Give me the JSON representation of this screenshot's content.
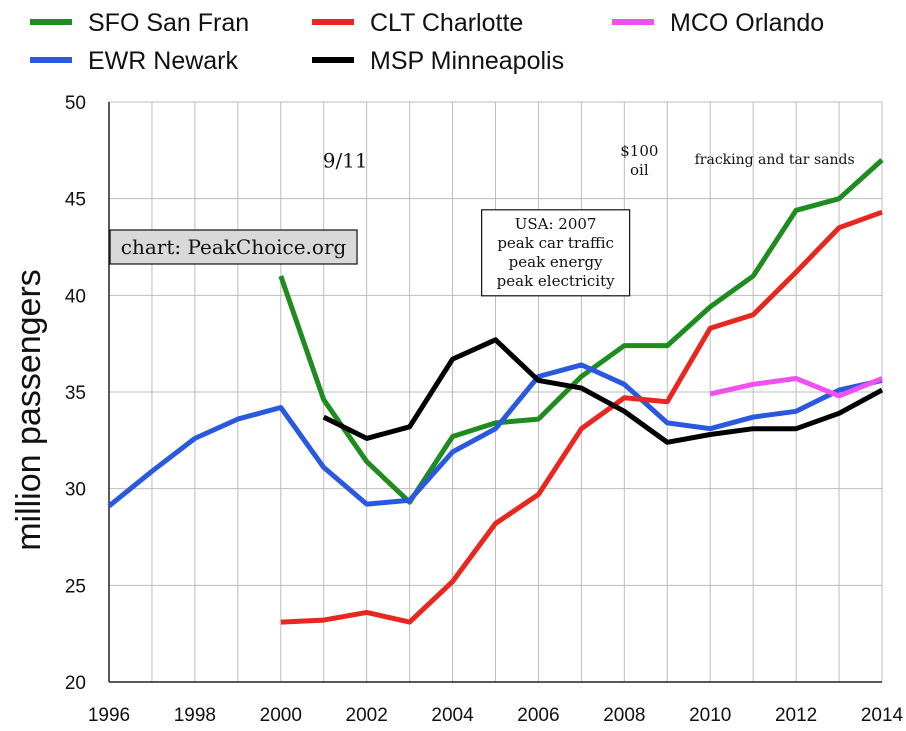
{
  "chart_data": {
    "type": "line",
    "title": "",
    "xlabel": "",
    "ylabel": "million passengers",
    "xlim": [
      1996,
      2014
    ],
    "ylim": [
      20,
      50
    ],
    "grid": true,
    "legend_placement": "top",
    "x_ticks": [
      "1996",
      "1998",
      "2000",
      "2002",
      "2004",
      "2006",
      "2008",
      "2010",
      "2012",
      "2014"
    ],
    "y_ticks": [
      "20",
      "25",
      "30",
      "35",
      "40",
      "45",
      "50"
    ],
    "series": [
      {
        "name": "SFO San Fran",
        "color": "#1e8c1e",
        "x": [
          2000,
          2001,
          2002,
          2003,
          2004,
          2005,
          2006,
          2007,
          2008,
          2009,
          2010,
          2011,
          2012,
          2013,
          2014
        ],
        "y": [
          41.0,
          34.6,
          31.4,
          29.3,
          32.7,
          33.4,
          33.6,
          35.8,
          37.4,
          37.4,
          39.4,
          41.0,
          44.4,
          45.0,
          47.0
        ]
      },
      {
        "name": "EWR Newark",
        "color": "#2a59e0",
        "x": [
          1996,
          1997,
          1998,
          1999,
          2000,
          2001,
          2002,
          2003,
          2004,
          2005,
          2006,
          2007,
          2008,
          2009,
          2010,
          2011,
          2012,
          2013,
          2014
        ],
        "y": [
          29.1,
          30.9,
          32.6,
          33.6,
          34.2,
          31.1,
          29.2,
          29.4,
          31.9,
          33.1,
          35.8,
          36.4,
          35.4,
          33.4,
          33.1,
          33.7,
          34.0,
          35.1,
          35.6
        ]
      },
      {
        "name": "CLT Charlotte",
        "color": "#e82820",
        "x": [
          2000,
          2001,
          2002,
          2003,
          2004,
          2005,
          2006,
          2007,
          2008,
          2009,
          2010,
          2011,
          2012,
          2013,
          2014
        ],
        "y": [
          23.1,
          23.2,
          23.6,
          23.1,
          25.2,
          28.2,
          29.7,
          33.1,
          34.7,
          34.5,
          38.3,
          39.0,
          41.2,
          43.5,
          44.3
        ]
      },
      {
        "name": "MSP Minneapolis",
        "color": "#000000",
        "x": [
          2001,
          2002,
          2003,
          2004,
          2005,
          2006,
          2007,
          2008,
          2009,
          2010,
          2011,
          2012,
          2013,
          2014
        ],
        "y": [
          33.7,
          32.6,
          33.2,
          36.7,
          37.7,
          35.6,
          35.2,
          34.0,
          32.4,
          32.8,
          33.1,
          33.1,
          33.9,
          35.1
        ]
      },
      {
        "name": "MCO Orlando",
        "color": "#f050f0",
        "x": [
          2010,
          2011,
          2012,
          2013,
          2014
        ],
        "y": [
          34.9,
          35.4,
          35.7,
          34.8,
          35.7
        ]
      }
    ],
    "annotations": [
      {
        "text": "9/11",
        "x": 2001.5,
        "y": 46.6
      },
      {
        "text": "$100\noil",
        "x": 2008.35,
        "y": 47.2
      },
      {
        "text": "fracking and tar sands",
        "x": 2011.5,
        "y": 46.8
      },
      {
        "text": "USA: 2007\npeak car traffic\npeak energy\npeak electricity",
        "x": 2006.4,
        "y": 42.2,
        "boxed": true
      },
      {
        "text": "chart: PeakChoice.org",
        "x": 1998.9,
        "y": 42.5,
        "boxed": true,
        "fill": "#d9d9d9"
      }
    ]
  }
}
